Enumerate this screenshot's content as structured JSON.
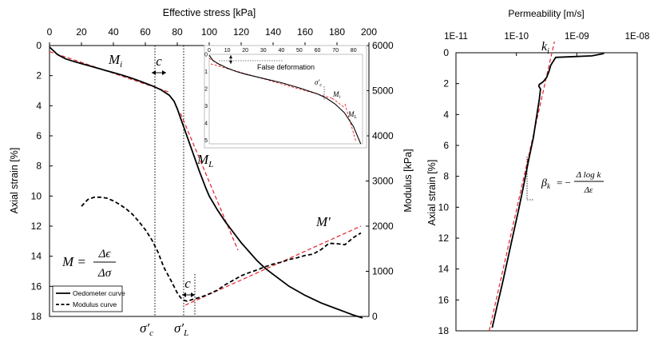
{
  "chart_data": [
    {
      "type": "line",
      "title": "",
      "xlabel": "Effective stress [kPa]",
      "ylabel": "Axial strain [%]",
      "y2label": "Modulus [kPa]",
      "xlim": [
        0,
        200
      ],
      "ylim": [
        18,
        0
      ],
      "y2lim": [
        0,
        6000
      ],
      "xticks": [
        "0",
        "20",
        "40",
        "60",
        "80",
        "100",
        "120",
        "140",
        "160",
        "180",
        "200"
      ],
      "yticks": [
        "0",
        "2",
        "4",
        "6",
        "8",
        "10",
        "12",
        "14",
        "16",
        "18"
      ],
      "y2ticks": [
        "0",
        "1000",
        "2000",
        "3000",
        "4000",
        "5000",
        "6000"
      ],
      "legend": [
        "Oedometer curve",
        "Modulus curve"
      ],
      "series": [
        {
          "name": "Oedometer curve",
          "x": [
            0,
            5,
            10,
            15,
            20,
            25,
            30,
            35,
            40,
            45,
            50,
            55,
            60,
            65,
            70,
            75,
            78,
            80,
            82,
            84,
            86,
            88,
            90,
            92,
            94,
            96,
            98,
            100,
            105,
            110,
            115,
            120,
            125,
            130,
            135,
            140,
            145,
            150,
            160,
            170,
            180,
            185,
            190,
            196
          ],
          "y": [
            0.1,
            0.6,
            0.88,
            1.05,
            1.2,
            1.35,
            1.5,
            1.65,
            1.8,
            1.95,
            2.12,
            2.3,
            2.5,
            2.7,
            2.95,
            3.3,
            3.7,
            4.2,
            4.8,
            5.4,
            6.0,
            6.6,
            7.2,
            7.8,
            8.4,
            8.95,
            9.5,
            10.0,
            10.9,
            11.7,
            12.4,
            13.1,
            13.7,
            14.3,
            14.8,
            15.2,
            15.6,
            16.0,
            16.6,
            17.1,
            17.5,
            17.7,
            17.9,
            18.1
          ]
        },
        {
          "name": "Modulus curve",
          "x": [
            20,
            24,
            28,
            32,
            36,
            40,
            44,
            48,
            52,
            56,
            60,
            64,
            68,
            70,
            72,
            74,
            76,
            78,
            80,
            82,
            84,
            86,
            88,
            90,
            95,
            100,
            105,
            110,
            115,
            120,
            125,
            130,
            135,
            140,
            145,
            150,
            155,
            160,
            165,
            170,
            175,
            180,
            185,
            190,
            195
          ],
          "y": [
            2440,
            2590,
            2640,
            2640,
            2620,
            2560,
            2480,
            2380,
            2260,
            2100,
            1920,
            1700,
            1420,
            1230,
            1060,
            930,
            800,
            660,
            520,
            420,
            360,
            340,
            360,
            380,
            430,
            500,
            580,
            700,
            800,
            900,
            970,
            1030,
            1100,
            1160,
            1200,
            1260,
            1300,
            1350,
            1380,
            1480,
            1620,
            1610,
            1590,
            1740,
            1850
          ]
        }
      ],
      "fits": [
        {
          "name": "M_i",
          "x": [
            0,
            75
          ],
          "y": [
            0.4,
            3.1
          ]
        },
        {
          "name": "M_L",
          "x": [
            82,
            118
          ],
          "y": [
            4.5,
            13.6
          ]
        },
        {
          "name": "M'",
          "x": [
            85,
            195
          ],
          "y2": [
            250,
            2000
          ]
        }
      ],
      "markers": [
        {
          "label": "σ′c",
          "x": 66
        },
        {
          "label": "σ′L",
          "x": 84
        }
      ],
      "annotations": {
        "c_top": "c",
        "c_bottom": "c",
        "M_i": "M",
        "M_i_sub": "i",
        "M_L": "M",
        "M_L_sub": "L",
        "M_prime": "M′",
        "formula_lhs": "M =",
        "formula_num": "Δϵ",
        "formula_den": "Δσ",
        "sigma_c": "σ′",
        "sigma_c_sub": "c",
        "sigma_L": "σ′",
        "sigma_L_sub": "L"
      },
      "inset": {
        "xticks": [
          "0",
          "10",
          "20",
          "30",
          "40",
          "50",
          "60",
          "70",
          "80"
        ],
        "yticks": [
          "0",
          "1",
          "2",
          "3",
          "4",
          "5"
        ],
        "xlim": [
          0,
          85
        ],
        "ylim": [
          5.2,
          0
        ],
        "false_deformation_label": "False deformation",
        "labels": {
          "sigma": "σ′",
          "sigma_sub": "c",
          "M_i": "M",
          "M_i_sub": "i",
          "M_L": "M",
          "M_L_sub": "L"
        },
        "x": [
          0,
          2,
          5,
          10,
          15,
          20,
          30,
          40,
          50,
          60,
          65,
          70,
          75,
          80,
          82,
          84
        ],
        "y": [
          0.05,
          0.35,
          0.55,
          0.8,
          1.0,
          1.15,
          1.4,
          1.65,
          1.95,
          2.3,
          2.55,
          2.9,
          3.4,
          4.2,
          4.7,
          5.2
        ]
      }
    },
    {
      "type": "line",
      "title": "Permeability [m/s]",
      "xlabel": "Permeability [m/s]",
      "ylabel": "Axial strain [%]",
      "xscale": "log",
      "xticks": [
        "1E-11",
        "1E-10",
        "1E-09",
        "1E-08"
      ],
      "yticks": [
        "0",
        "2",
        "4",
        "6",
        "8",
        "10",
        "12",
        "14",
        "16",
        "18"
      ],
      "ylim": [
        18,
        0
      ],
      "series": [
        {
          "name": "Permeability",
          "logk": [
            -8.55,
            -8.75,
            -9.35,
            -9.43,
            -9.46,
            -9.5,
            -9.55,
            -9.6,
            -9.62,
            -9.63,
            -9.6,
            -9.62,
            -9.66,
            -9.72,
            -9.8,
            -9.88,
            -9.96,
            -10.05,
            -10.14,
            -10.23,
            -10.32,
            -10.4
          ],
          "y": [
            0.05,
            0.2,
            0.3,
            0.8,
            1.2,
            1.6,
            1.85,
            2.0,
            2.05,
            2.15,
            2.35,
            3.0,
            4.0,
            5.5,
            7.0,
            8.6,
            10.1,
            11.7,
            13.3,
            14.9,
            16.4,
            17.8
          ]
        }
      ],
      "fit": {
        "logk": [
          -10.45,
          -9.37
        ],
        "y": [
          18,
          0
        ]
      },
      "annotations": {
        "k_i": "k",
        "k_i_sub": "i",
        "beta": "β",
        "beta_sub": "k",
        "beta_eq": "= −",
        "beta_num": "Δ log k",
        "beta_den": "Δε"
      }
    }
  ],
  "colors": {
    "curve": "#000000",
    "fit": "#e8202a",
    "axis": "#000000",
    "inset_frame": "#bfbfbf"
  }
}
